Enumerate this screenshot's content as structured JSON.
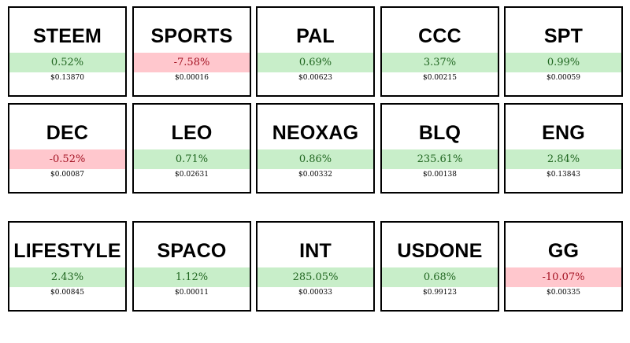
{
  "tokens": [
    {
      "symbol": "STEEM",
      "change": "0.52%",
      "direction": "up",
      "price": "$0.13870"
    },
    {
      "symbol": "SPORTS",
      "change": "-7.58%",
      "direction": "down",
      "price": "$0.00016"
    },
    {
      "symbol": "PAL",
      "change": "0.69%",
      "direction": "up",
      "price": "$0.00623"
    },
    {
      "symbol": "CCC",
      "change": "3.37%",
      "direction": "up",
      "price": "$0.00215"
    },
    {
      "symbol": "SPT",
      "change": "0.99%",
      "direction": "up",
      "price": "$0.00059"
    },
    {
      "symbol": "DEC",
      "change": "-0.52%",
      "direction": "down",
      "price": "$0.00087"
    },
    {
      "symbol": "LEO",
      "change": "0.71%",
      "direction": "up",
      "price": "$0.02631"
    },
    {
      "symbol": "NEOXAG",
      "change": "0.86%",
      "direction": "up",
      "price": "$0.00332"
    },
    {
      "symbol": "BLQ",
      "change": "235.61%",
      "direction": "up",
      "price": "$0.00138"
    },
    {
      "symbol": "ENG",
      "change": "2.84%",
      "direction": "up",
      "price": "$0.13843"
    },
    {
      "symbol": "LIFESTYLE",
      "change": "2.43%",
      "direction": "up",
      "price": "$0.00845"
    },
    {
      "symbol": "SPACO",
      "change": "1.12%",
      "direction": "up",
      "price": "$0.00011"
    },
    {
      "symbol": "INT",
      "change": "285.05%",
      "direction": "up",
      "price": "$0.00033"
    },
    {
      "symbol": "USDONE",
      "change": "0.68%",
      "direction": "up",
      "price": "$0.99123"
    },
    {
      "symbol": "GG",
      "change": "-10.07%",
      "direction": "down",
      "price": "$0.00335"
    }
  ],
  "colors": {
    "up_background": "#c8eec9",
    "up_text": "#206620",
    "down_background": "#ffc7cd",
    "down_text": "#a41222",
    "border": "#000000"
  }
}
